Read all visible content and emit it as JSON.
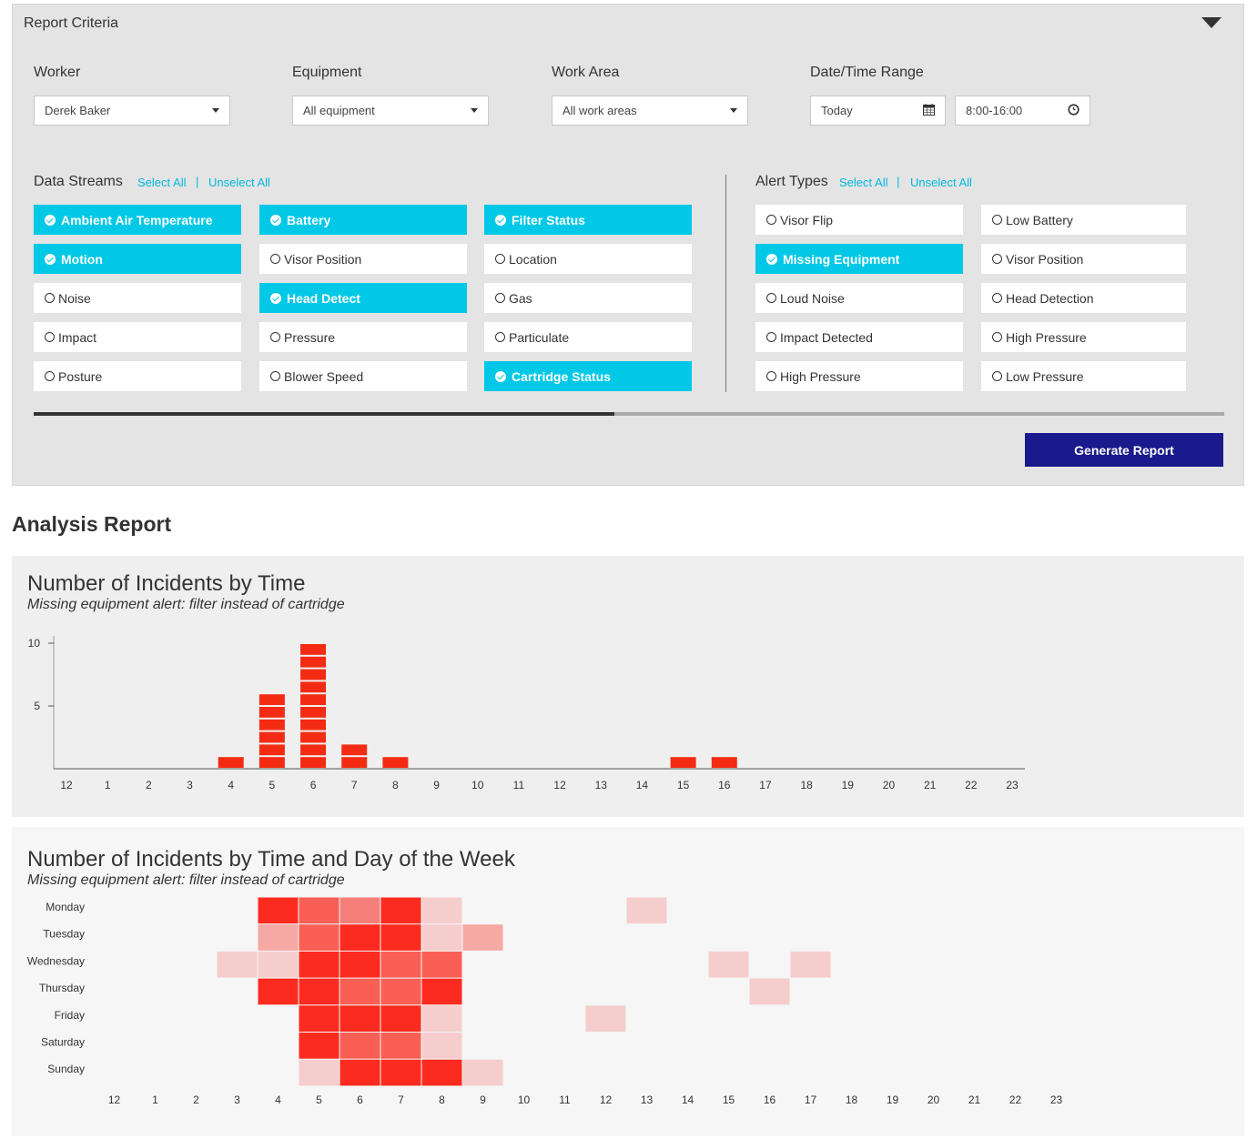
{
  "criteria": {
    "title": "Report Criteria",
    "worker": {
      "label": "Worker",
      "value": "Derek Baker"
    },
    "equipment": {
      "label": "Equipment",
      "value": "All equipment"
    },
    "work_area": {
      "label": "Work Area",
      "value": "All work areas"
    },
    "date_time": {
      "label": "Date/Time Range",
      "date": "Today",
      "time": "8:00-16:00"
    },
    "data_streams": {
      "label": "Data Streams",
      "select_all": "Select All",
      "unselect_all": "Unselect All",
      "separator": "|",
      "items": [
        {
          "label": "Ambient Air Temperature",
          "checked": true
        },
        {
          "label": "Battery",
          "checked": true
        },
        {
          "label": "Filter Status",
          "checked": true
        },
        {
          "label": "Motion",
          "checked": true
        },
        {
          "label": "Visor Position",
          "checked": false
        },
        {
          "label": "Location",
          "checked": false
        },
        {
          "label": "Noise",
          "checked": false
        },
        {
          "label": "Head Detect",
          "checked": true
        },
        {
          "label": "Gas",
          "checked": false
        },
        {
          "label": "Impact",
          "checked": false
        },
        {
          "label": "Pressure",
          "checked": false
        },
        {
          "label": "Particulate",
          "checked": false
        },
        {
          "label": "Posture",
          "checked": false
        },
        {
          "label": "Blower Speed",
          "checked": false
        },
        {
          "label": "Cartridge Status",
          "checked": true
        }
      ]
    },
    "alert_types": {
      "label": "Alert Types",
      "select_all": "Select All",
      "unselect_all": "Unselect All",
      "separator": "|",
      "items": [
        {
          "label": "Visor Flip",
          "checked": false
        },
        {
          "label": "Low Battery",
          "checked": false
        },
        {
          "label": "Missing Equipment",
          "checked": true
        },
        {
          "label": "Visor Position",
          "checked": false
        },
        {
          "label": "Loud Noise",
          "checked": false
        },
        {
          "label": "Head Detection",
          "checked": false
        },
        {
          "label": "Impact Detected",
          "checked": false
        },
        {
          "label": "High Pressure",
          "checked": false
        },
        {
          "label": "High Pressure",
          "checked": false
        },
        {
          "label": "Low Pressure",
          "checked": false
        }
      ]
    },
    "scroll_position": 0.49,
    "generate_label": "Generate Report"
  },
  "report": {
    "title": "Analysis Report",
    "chart1": {
      "title": "Number of Incidents by Time",
      "subtitle": "Missing equipment alert: filter instead of cartridge"
    },
    "chart2": {
      "title": "Number of Incidents by Time and Day of the Week",
      "subtitle": "Missing equipment alert: filter instead of cartridge"
    }
  },
  "colors": {
    "accent": "#00c8e6",
    "link": "#00b9df",
    "primary_button": "#1a1a8c",
    "bar": "#f42b13",
    "heat_levels": [
      "#f6cdcd",
      "#f6a8a4",
      "#f77f7b",
      "#f95f55",
      "#fc2b1f"
    ]
  },
  "chart_data": [
    {
      "type": "bar",
      "title": "Number of Incidents by Time",
      "subtitle": "Missing equipment alert: filter instead of cartridge",
      "categories": [
        "12",
        "1",
        "2",
        "3",
        "4",
        "5",
        "6",
        "7",
        "8",
        "9",
        "10",
        "11",
        "12",
        "13",
        "14",
        "15",
        "16",
        "17",
        "18",
        "19",
        "20",
        "21",
        "22",
        "23"
      ],
      "values": [
        0,
        0,
        0,
        0,
        1,
        6,
        10,
        2,
        1,
        0,
        0,
        0,
        0,
        0,
        0,
        1,
        1,
        0,
        0,
        0,
        0,
        0,
        0,
        0
      ],
      "yticks": [
        5,
        10
      ],
      "ylim": [
        0,
        10
      ],
      "xlabel": "",
      "ylabel": ""
    },
    {
      "type": "heatmap",
      "title": "Number of Incidents by Time and Day of the Week",
      "subtitle": "Missing equipment alert: filter instead of cartridge",
      "x": [
        "12",
        "1",
        "2",
        "3",
        "4",
        "5",
        "6",
        "7",
        "8",
        "9",
        "10",
        "11",
        "12",
        "13",
        "14",
        "15",
        "16",
        "17",
        "18",
        "19",
        "20",
        "21",
        "22",
        "23"
      ],
      "y": [
        "Monday",
        "Tuesday",
        "Wednesday",
        "Thursday",
        "Friday",
        "Saturday",
        "Sunday"
      ],
      "intensity_scale": "0 = none, 1 = lightest, 5 = darkest",
      "values": [
        [
          0,
          0,
          0,
          0,
          5,
          4,
          3,
          5,
          1,
          0,
          0,
          0,
          0,
          1,
          0,
          0,
          0,
          0,
          0,
          0,
          0,
          0,
          0,
          0
        ],
        [
          0,
          0,
          0,
          0,
          2,
          4,
          5,
          5,
          1,
          2,
          0,
          0,
          0,
          0,
          0,
          0,
          0,
          0,
          0,
          0,
          0,
          0,
          0,
          0
        ],
        [
          0,
          0,
          0,
          1,
          1,
          5,
          5,
          4,
          4,
          0,
          0,
          0,
          0,
          0,
          0,
          1,
          0,
          1,
          0,
          0,
          0,
          0,
          0,
          0
        ],
        [
          0,
          0,
          0,
          0,
          5,
          5,
          4,
          4,
          5,
          0,
          0,
          0,
          0,
          0,
          0,
          0,
          1,
          0,
          0,
          0,
          0,
          0,
          0,
          0
        ],
        [
          0,
          0,
          0,
          0,
          0,
          5,
          5,
          5,
          1,
          0,
          0,
          0,
          1,
          0,
          0,
          0,
          0,
          0,
          0,
          0,
          0,
          0,
          0,
          0
        ],
        [
          0,
          0,
          0,
          0,
          0,
          5,
          4,
          4,
          1,
          0,
          0,
          0,
          0,
          0,
          0,
          0,
          0,
          0,
          0,
          0,
          0,
          0,
          0,
          0
        ],
        [
          0,
          0,
          0,
          0,
          0,
          1,
          5,
          5,
          5,
          1,
          0,
          0,
          0,
          0,
          0,
          0,
          0,
          0,
          0,
          0,
          0,
          0,
          0,
          0
        ]
      ]
    }
  ]
}
